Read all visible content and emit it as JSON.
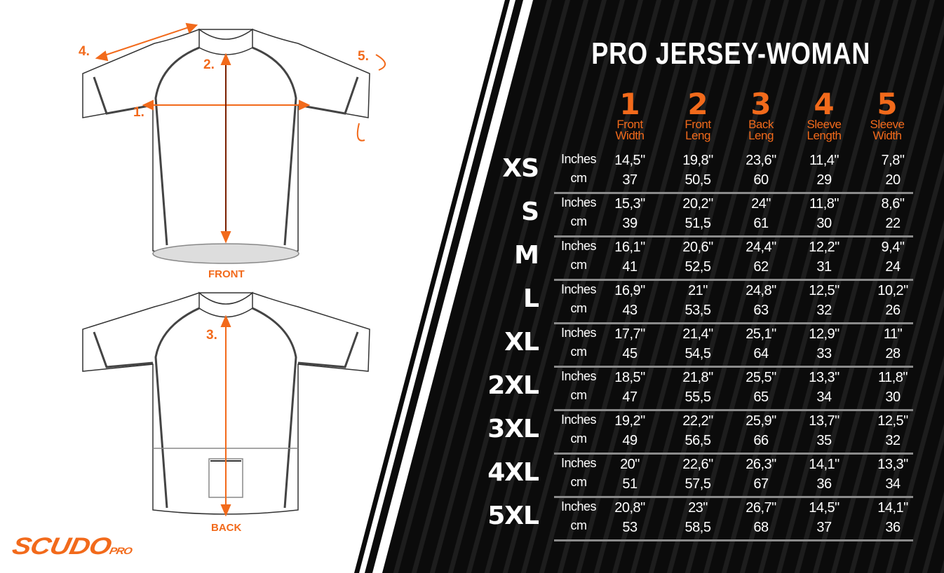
{
  "title": "PRO JERSEY-WOMAN",
  "colors": {
    "accent": "#f26a1b",
    "background_dark": "#0c0c0c"
  },
  "diagram": {
    "front_label": "FRONT",
    "back_label": "BACK",
    "markers": [
      "1.",
      "2.",
      "3.",
      "4.",
      "5."
    ]
  },
  "brand": {
    "name": "SCUDO",
    "suffix": "PRO"
  },
  "columns": [
    {
      "number": "1",
      "label1": "Front",
      "label2": "Width"
    },
    {
      "number": "2",
      "label1": "Front",
      "label2": "Leng"
    },
    {
      "number": "3",
      "label1": "Back",
      "label2": "Leng"
    },
    {
      "number": "4",
      "label1": "Sleeve",
      "label2": "Length"
    },
    {
      "number": "5",
      "label1": "Sleeve",
      "label2": "Width"
    }
  ],
  "units": {
    "inches": "Inches",
    "cm": "cm"
  },
  "rows": [
    {
      "size": "XS",
      "inches": [
        "14,5\"",
        "19,8\"",
        "23,6\"",
        "11,4\"",
        "7,8\""
      ],
      "cm": [
        "37",
        "50,5",
        "60",
        "29",
        "20"
      ]
    },
    {
      "size": "S",
      "inches": [
        "15,3\"",
        "20,2\"",
        "24\"",
        "11,8\"",
        "8,6\""
      ],
      "cm": [
        "39",
        "51,5",
        "61",
        "30",
        "22"
      ]
    },
    {
      "size": "M",
      "inches": [
        "16,1\"",
        "20,6\"",
        "24,4\"",
        "12,2\"",
        "9,4\""
      ],
      "cm": [
        "41",
        "52,5",
        "62",
        "31",
        "24"
      ]
    },
    {
      "size": "L",
      "inches": [
        "16,9\"",
        "21\"",
        "24,8\"",
        "12,5\"",
        "10,2\""
      ],
      "cm": [
        "43",
        "53,5",
        "63",
        "32",
        "26"
      ]
    },
    {
      "size": "XL",
      "inches": [
        "17,7\"",
        "21,4\"",
        "25,1\"",
        "12,9\"",
        "11\""
      ],
      "cm": [
        "45",
        "54,5",
        "64",
        "33",
        "28"
      ]
    },
    {
      "size": "2XL",
      "inches": [
        "18,5\"",
        "21,8\"",
        "25,5\"",
        "13,3\"",
        "11,8\""
      ],
      "cm": [
        "47",
        "55,5",
        "65",
        "34",
        "30"
      ]
    },
    {
      "size": "3XL",
      "inches": [
        "19,2\"",
        "22,2\"",
        "25,9\"",
        "13,7\"",
        "12,5\""
      ],
      "cm": [
        "49",
        "56,5",
        "66",
        "35",
        "32"
      ]
    },
    {
      "size": "4XL",
      "inches": [
        "20\"",
        "22,6\"",
        "26,3\"",
        "14,1\"",
        "13,3\""
      ],
      "cm": [
        "51",
        "57,5",
        "67",
        "36",
        "34"
      ]
    },
    {
      "size": "5XL",
      "inches": [
        "20,8\"",
        "23\"",
        "26,7\"",
        "14,5\"",
        "14,1\""
      ],
      "cm": [
        "53",
        "58,5",
        "68",
        "37",
        "36"
      ]
    }
  ]
}
